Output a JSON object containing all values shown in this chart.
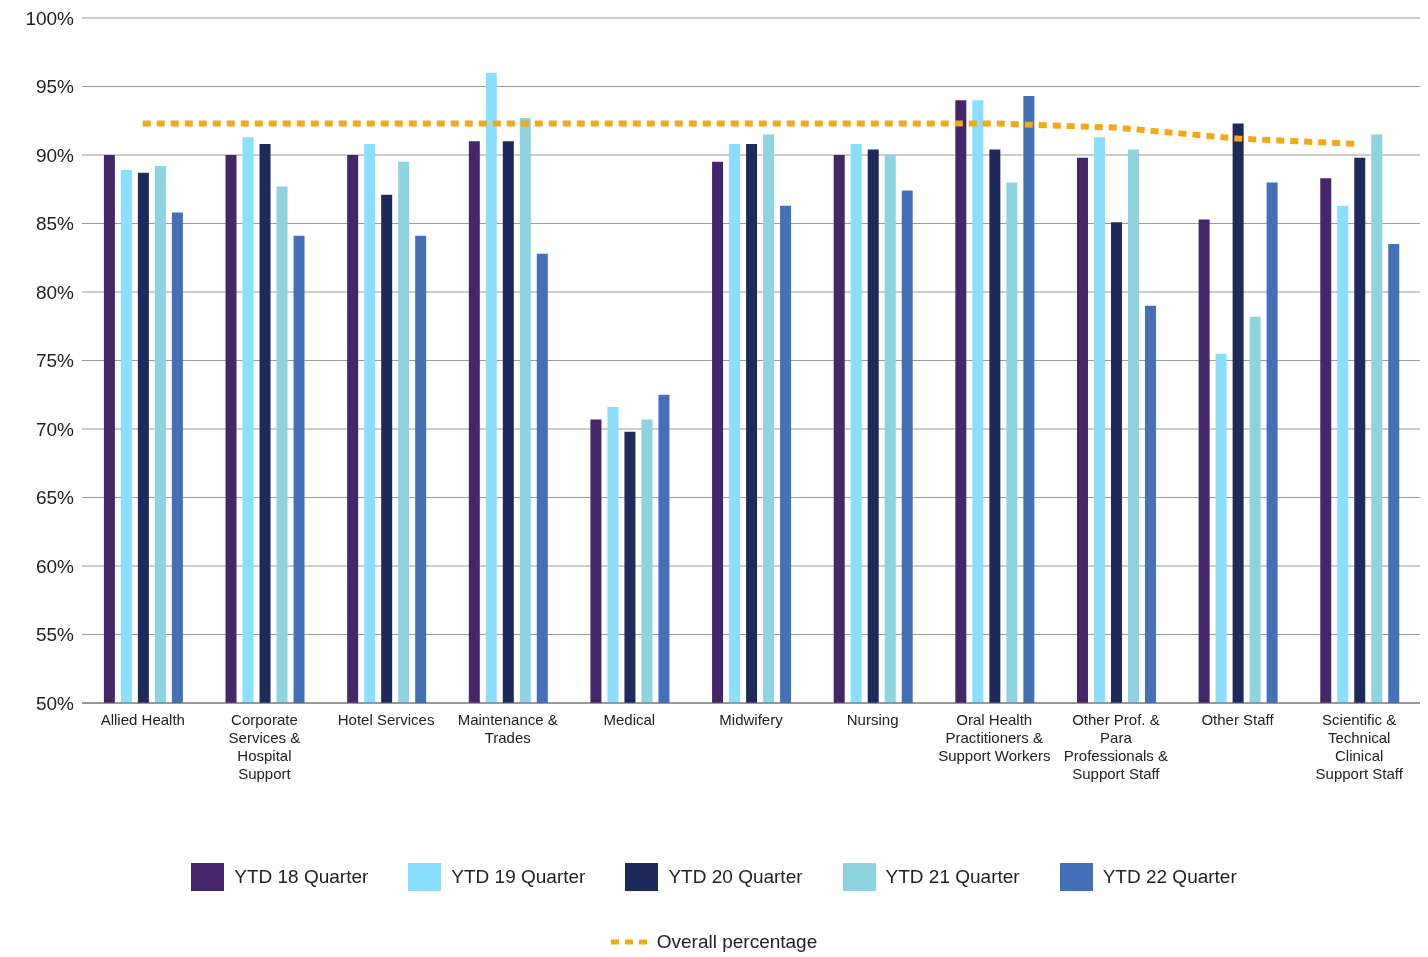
{
  "chart_data": {
    "type": "bar",
    "categories": [
      "Allied Health",
      "Corporate Services & Hospital Support",
      "Hotel Services",
      "Maintenance & Trades",
      "Medical",
      "Midwifery",
      "Nursing",
      "Oral Health Practitioners & Support Workers",
      "Other Prof. & Para Professionals & Support Staff",
      "Other Staff",
      "Scientific & Technical Clinical Support Staff"
    ],
    "series": [
      {
        "name": "YTD 18 Quarter",
        "color": "#45266b",
        "values": [
          90.0,
          90.0,
          90.0,
          91.0,
          70.7,
          89.5,
          90.0,
          94.0,
          89.8,
          85.3,
          88.3
        ]
      },
      {
        "name": "YTD 19 Quarter",
        "color": "#8adfff",
        "values": [
          88.9,
          91.3,
          90.8,
          96.0,
          71.6,
          90.8,
          90.8,
          94.0,
          91.3,
          75.5,
          86.3
        ]
      },
      {
        "name": "YTD 20 Quarter",
        "color": "#1f2a5c",
        "values": [
          88.7,
          90.8,
          87.1,
          91.0,
          69.8,
          90.8,
          90.4,
          90.4,
          85.1,
          92.3,
          89.8
        ]
      },
      {
        "name": "YTD 21 Quarter",
        "color": "#8ed3e0",
        "values": [
          89.2,
          87.7,
          89.5,
          92.7,
          70.7,
          91.5,
          90.0,
          88.0,
          90.4,
          78.2,
          91.5
        ]
      },
      {
        "name": "YTD 22 Quarter",
        "color": "#4470b8",
        "values": [
          85.8,
          84.1,
          84.1,
          82.8,
          72.5,
          86.3,
          87.4,
          94.3,
          79.0,
          88.0,
          83.5
        ]
      },
      {
        "name": "Overall percentage",
        "type": "line",
        "color": "#f5a815",
        "line_style": "dotted",
        "marker": "none",
        "values": [
          92.3,
          92.3,
          92.3,
          92.3,
          92.3,
          92.3,
          92.3,
          92.3,
          92.0,
          91.2,
          90.8
        ]
      }
    ],
    "ylim": [
      50,
      100
    ],
    "yticks": [
      {
        "value": 50,
        "label": "50%"
      },
      {
        "value": 55,
        "label": "55%"
      },
      {
        "value": 60,
        "label": "60%"
      },
      {
        "value": 65,
        "label": "65%"
      },
      {
        "value": 70,
        "label": "70%"
      },
      {
        "value": 75,
        "label": "75%"
      },
      {
        "value": 80,
        "label": "80%"
      },
      {
        "value": 85,
        "label": "85%"
      },
      {
        "value": 90,
        "label": "90%"
      },
      {
        "value": 95,
        "label": "95%"
      },
      {
        "value": 100,
        "label": "100%"
      }
    ],
    "grid": "y",
    "legend": "bottom"
  }
}
